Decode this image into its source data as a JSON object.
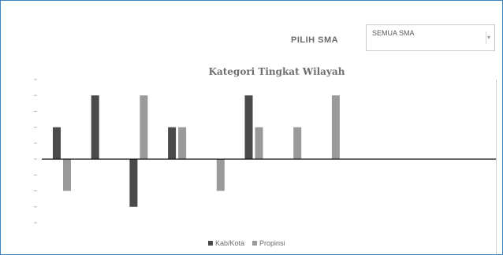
{
  "filter": {
    "label": "PILIH SMA",
    "selected": "SEMUA SMA"
  },
  "chart_data": {
    "type": "bar",
    "title": "Kategori Tingkat Wilayah",
    "categories": [
      "",
      "",
      "",
      "",
      "",
      "",
      "",
      ""
    ],
    "series": [
      {
        "name": "Kab/Kota",
        "color": "#4a4a4a",
        "values": [
          2,
          4,
          -3,
          2,
          0,
          4,
          0,
          0
        ]
      },
      {
        "name": "Propinsi",
        "color": "#9a9a9a",
        "values": [
          -2,
          0,
          4,
          2,
          -2,
          2,
          2,
          4
        ]
      }
    ],
    "ylim": [
      -4,
      5
    ],
    "y_ticks": [
      -4,
      -3,
      -2,
      -1,
      0,
      1,
      2,
      3,
      4,
      5
    ],
    "zero_line": true,
    "grid": false,
    "legend_position": "bottom"
  }
}
